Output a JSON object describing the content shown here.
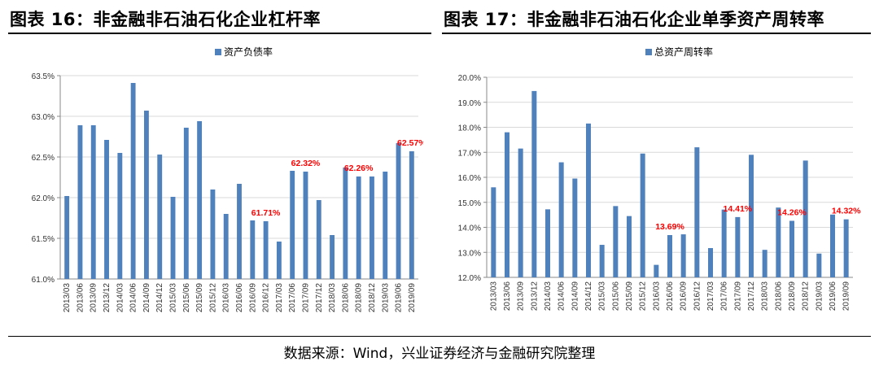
{
  "header": {
    "left_title": "图表 16：非金融非石油石化企业杠杆率",
    "right_title": "图表 17：非金融非石油石化企业单季资产周转率"
  },
  "footer": {
    "source": "数据来源：Wind，兴业证券经济与金融研究院整理"
  },
  "colors": {
    "bar": "#4F81BD",
    "annotation": "#FF0000",
    "grid": "#D9D9D9",
    "axis": "#888888"
  },
  "chart_data": [
    {
      "type": "bar",
      "title": "",
      "legend": [
        "资产负债率"
      ],
      "legend_position": "top-center",
      "grid": true,
      "ylim": [
        61.0,
        63.5
      ],
      "ytick_step": 0.5,
      "ytick_labels": [
        "61.0%",
        "61.5%",
        "62.0%",
        "62.5%",
        "63.0%",
        "63.5%"
      ],
      "categories": [
        "2013/03",
        "2013/06",
        "2013/09",
        "2013/12",
        "2014/03",
        "2014/06",
        "2014/09",
        "2014/12",
        "2015/03",
        "2015/06",
        "2015/09",
        "2015/12",
        "2016/03",
        "2016/06",
        "2016/09",
        "2016/12",
        "2017/03",
        "2017/06",
        "2017/09",
        "2017/12",
        "2018/03",
        "2018/06",
        "2018/09",
        "2018/12",
        "2019/03",
        "2019/06",
        "2019/09"
      ],
      "series": [
        {
          "name": "资产负债率",
          "values": [
            62.02,
            62.89,
            62.89,
            62.71,
            62.55,
            63.41,
            63.07,
            62.53,
            62.01,
            62.86,
            62.94,
            62.1,
            61.8,
            62.17,
            61.72,
            61.71,
            61.46,
            62.33,
            62.32,
            61.97,
            61.54,
            62.37,
            62.26,
            62.26,
            62.32,
            62.67,
            62.57
          ]
        }
      ],
      "annotations": [
        {
          "index": 15,
          "text": "61.71%"
        },
        {
          "index": 18,
          "text": "62.32%"
        },
        {
          "index": 22,
          "text": "62.26%"
        },
        {
          "index": 26,
          "text": "62.57%"
        }
      ]
    },
    {
      "type": "bar",
      "title": "",
      "legend": [
        "总资产周转率"
      ],
      "legend_position": "top-center",
      "grid": true,
      "ylim": [
        12.0,
        20.0
      ],
      "ytick_step": 1.0,
      "ytick_labels": [
        "12.0%",
        "13.0%",
        "14.0%",
        "15.0%",
        "16.0%",
        "17.0%",
        "18.0%",
        "19.0%",
        "20.0%"
      ],
      "categories": [
        "2013/03",
        "2013/06",
        "2013/09",
        "2013/12",
        "2014/03",
        "2014/06",
        "2014/09",
        "2014/12",
        "2015/03",
        "2015/06",
        "2015/09",
        "2015/12",
        "2016/03",
        "2016/06",
        "2016/09",
        "2016/12",
        "2017/03",
        "2017/06",
        "2017/09",
        "2017/12",
        "2018/03",
        "2018/06",
        "2018/09",
        "2018/12",
        "2019/03",
        "2019/06",
        "2019/09"
      ],
      "series": [
        {
          "name": "总资产周转率",
          "values": [
            15.6,
            17.8,
            17.15,
            19.45,
            14.72,
            16.6,
            15.95,
            18.15,
            13.3,
            14.85,
            14.45,
            16.95,
            12.5,
            13.69,
            13.72,
            17.2,
            13.17,
            14.71,
            14.41,
            16.9,
            13.1,
            14.79,
            14.26,
            16.67,
            12.95,
            14.51,
            14.32
          ]
        }
      ],
      "annotations": [
        {
          "index": 13,
          "text": "13.69%"
        },
        {
          "index": 18,
          "text": "14.41%"
        },
        {
          "index": 22,
          "text": "14.26%"
        },
        {
          "index": 26,
          "text": "14.32%"
        }
      ]
    }
  ]
}
